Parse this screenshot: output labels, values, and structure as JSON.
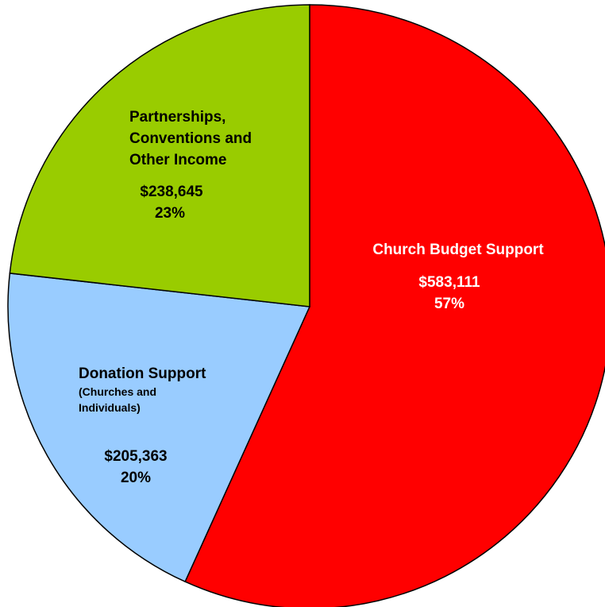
{
  "chart_data": {
    "type": "pie",
    "title": "",
    "slices": [
      {
        "label": "Church Budget Support",
        "sublabel": "",
        "amount": 583111,
        "amount_text": "$583,111",
        "percent": 57,
        "percent_text": "57%",
        "color": "#ff0000",
        "text_color": "#ffffff"
      },
      {
        "label": "Donation Support",
        "sublabel": "(Churches and Individuals)",
        "amount": 205363,
        "amount_text": "$205,363",
        "percent": 20,
        "percent_text": "20%",
        "color": "#99ccff",
        "text_color": "#000000"
      },
      {
        "label": "Partnerships, Conventions and Other Income",
        "sublabel": "",
        "amount": 238645,
        "amount_text": "$238,645",
        "percent": 23,
        "percent_text": "23%",
        "color": "#99cc00",
        "text_color": "#000000"
      }
    ],
    "start_angle_deg": 0,
    "direction": "clockwise",
    "legend": "none"
  }
}
